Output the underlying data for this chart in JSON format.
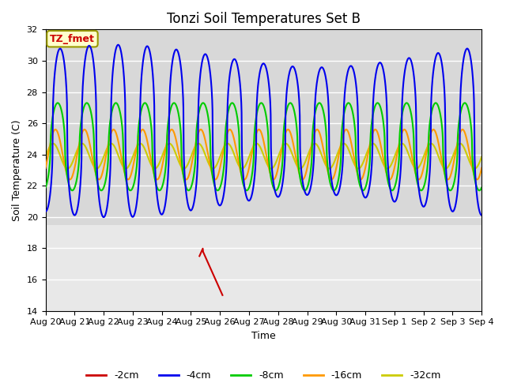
{
  "title": "Tonzi Soil Temperatures Set B",
  "xlabel": "Time",
  "ylabel": "Soil Temperature (C)",
  "ylim": [
    14,
    32
  ],
  "xlim": [
    0,
    15
  ],
  "x_tick_labels": [
    "Aug 20",
    "Aug 21",
    "Aug 22",
    "Aug 23",
    "Aug 24",
    "Aug 25",
    "Aug 26",
    "Aug 27",
    "Aug 28",
    "Aug 29",
    "Aug 30",
    "Aug 31",
    "Sep 1",
    "Sep 2",
    "Sep 3",
    "Sep 4"
  ],
  "legend_labels": [
    "-2cm",
    "-4cm",
    "-8cm",
    "-16cm",
    "-32cm"
  ],
  "legend_colors": [
    "#cc0000",
    "#0000dd",
    "#00cc00",
    "#ff9900",
    "#cccc00"
  ],
  "annotation_label": "TZ_fmet",
  "annotation_color": "#cc0000",
  "annotation_bg": "#ffffcc",
  "plot_bg": "#d8d8d8",
  "plot_bg_lower": "#e8e8e8",
  "lower_band_top": 19.5,
  "grid_color": "#ffffff",
  "title_fontsize": 12,
  "axis_label_fontsize": 9,
  "tick_fontsize": 8
}
